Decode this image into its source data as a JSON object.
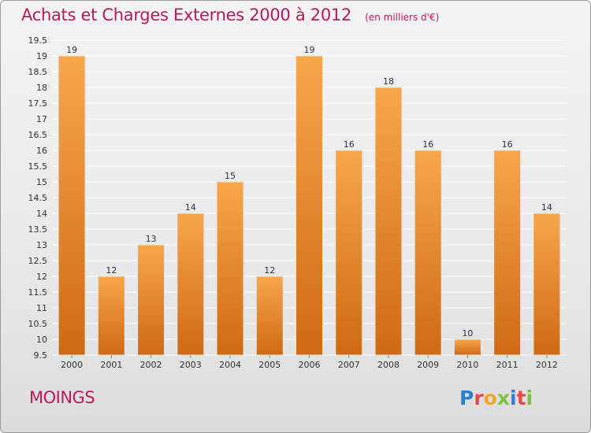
{
  "chart_data": {
    "type": "bar",
    "title": "Achats et Charges Externes 2000 à 2012",
    "subtitle": "(en milliers d'€)",
    "categories": [
      "2000",
      "2001",
      "2002",
      "2003",
      "2004",
      "2005",
      "2006",
      "2007",
      "2008",
      "2009",
      "2010",
      "2011",
      "2012"
    ],
    "values": [
      19,
      12,
      13,
      14,
      15,
      12,
      19,
      16,
      18,
      16,
      10,
      16,
      14
    ],
    "data_labels": [
      "19",
      "12",
      "13",
      "14",
      "15",
      "12",
      "19",
      "16",
      "18",
      "16",
      "10",
      "16",
      "14"
    ],
    "ylim": [
      9.5,
      19.5
    ],
    "yticks": [
      9.5,
      10,
      10.5,
      11,
      11.5,
      12,
      12.5,
      13,
      13.5,
      14,
      14.5,
      15,
      15.5,
      16,
      16.5,
      17,
      17.5,
      18,
      18.5,
      19,
      19.5
    ],
    "ytick_labels": [
      "9.5",
      "10",
      "10.5",
      "11",
      "11.5",
      "12",
      "12.5",
      "13",
      "13.5",
      "14",
      "14.5",
      "15",
      "15.5",
      "16",
      "16.5",
      "17",
      "17.5",
      "18",
      "18.5",
      "19",
      "19.5"
    ],
    "grid": true,
    "legend": "none",
    "colors": {
      "bar_light": "#f7a64c",
      "bar_dark": "#cf6a14",
      "grid": "#ffffff",
      "axis_text": "#333333",
      "title": "#b5195e"
    }
  },
  "footer": {
    "town": "MOINGS",
    "logo_letters": [
      "P",
      "r",
      "o",
      "x",
      "i",
      "t",
      "i"
    ],
    "logo_colors": [
      "#2a7fd4",
      "#e8484a",
      "#f5a623",
      "#7bc043",
      "#2a7fd4",
      "#e8484a",
      "#7bc043"
    ]
  }
}
